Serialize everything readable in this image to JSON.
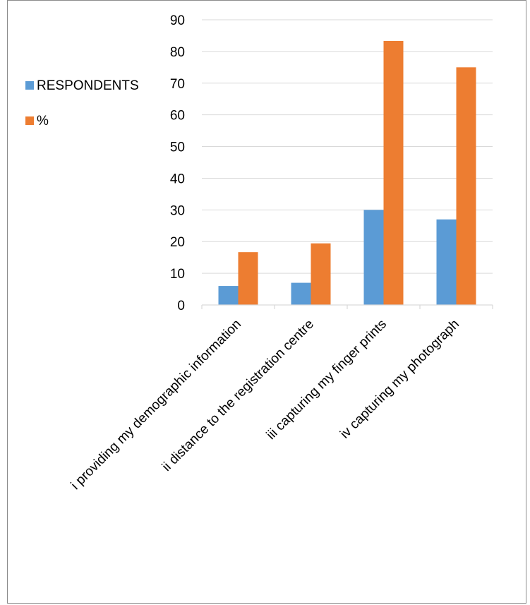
{
  "chart_data": {
    "type": "bar",
    "categories": [
      "i providing my demographic information",
      "ii distance to the registration centre",
      "iii capturing my finger prints",
      "iv capturing my photograph"
    ],
    "series": [
      {
        "name": "RESPONDENTS",
        "values": [
          6,
          7,
          30,
          27
        ],
        "color": "#5b9bd5"
      },
      {
        "name": "%",
        "values": [
          16.67,
          19.44,
          83.33,
          75
        ],
        "color": "#ed7d31"
      }
    ],
    "ylim": [
      0,
      90
    ],
    "yticks": [
      "0",
      "10",
      "20",
      "30",
      "40",
      "50",
      "60",
      "70",
      "80",
      "90"
    ],
    "grid": true,
    "legend_position": "left"
  }
}
